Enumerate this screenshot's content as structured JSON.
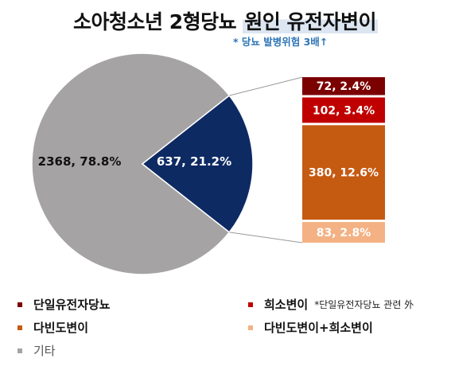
{
  "title_main": "소아청소년 2형당뇨 ",
  "title_highlight": "원인 유전자변이",
  "subtitle": "* 당뇨 발병위험 3배↑",
  "colors": {
    "other": "#a6a3a4",
    "polygenic": "#0d2a63",
    "monogenic": "#7b0000",
    "rare_variant": "#c00000",
    "polygenic_var": "#c55a11",
    "poly_plus_rare": "#f4b183"
  },
  "chart_data": {
    "type": "pie",
    "slices": [
      {
        "label": "2368, 78.8%",
        "value": 2368,
        "percent": 78.8,
        "legend": "기타",
        "color_key": "other"
      },
      {
        "label": "637, 21.2%",
        "value": 637,
        "percent": 21.2,
        "color_key": "polygenic"
      }
    ],
    "breakdown": {
      "type": "stacked_bar",
      "segments": [
        {
          "label": "72, 2.4%",
          "value": 72,
          "percent": 2.4,
          "legend": "단일유전자당뇨",
          "color_key": "monogenic"
        },
        {
          "label": "102, 3.4%",
          "value": 102,
          "percent": 3.4,
          "legend": "희소변이",
          "color_key": "rare_variant"
        },
        {
          "label": "380, 12.6%",
          "value": 380,
          "percent": 12.6,
          "legend": "다빈도변이",
          "color_key": "polygenic_var"
        },
        {
          "label": "83, 2.8%",
          "value": 83,
          "percent": 2.8,
          "legend": "다빈도변이+희소변이",
          "color_key": "poly_plus_rare"
        }
      ]
    }
  },
  "legend": {
    "monogenic": "단일유전자당뇨",
    "rare_variant": "희소변이",
    "rare_variant_note": "*단일유전자당뇨 관련 外",
    "polygenic_var": "다빈도변이",
    "poly_plus_rare": "다빈도변이+희소변이",
    "other": "기타"
  }
}
